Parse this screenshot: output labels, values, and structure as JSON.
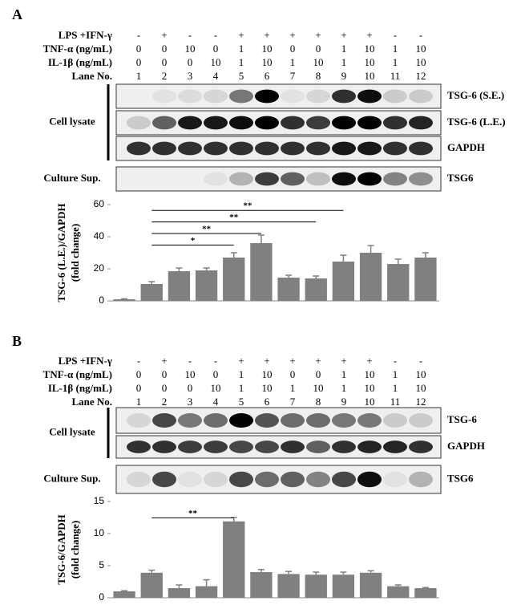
{
  "panels": [
    {
      "letter": "A",
      "rows": [
        {
          "label": "LPS +IFN-γ",
          "values": [
            "-",
            "+",
            "-",
            "-",
            "+",
            "+",
            "+",
            "+",
            "+",
            "+",
            "-",
            "-"
          ]
        },
        {
          "label": "TNF-α (ng/mL)",
          "values": [
            0,
            0,
            10,
            0,
            1,
            10,
            0,
            0,
            1,
            10,
            1,
            10
          ]
        },
        {
          "label": "IL-1β (ng/mL)",
          "values": [
            0,
            0,
            0,
            10,
            1,
            10,
            1,
            10,
            1,
            10,
            1,
            10
          ]
        },
        {
          "label": "Lane No.",
          "values": [
            1,
            2,
            3,
            4,
            5,
            6,
            7,
            8,
            9,
            10,
            11,
            12
          ]
        }
      ],
      "groups": [
        "Cell lysate",
        "Culture Sup."
      ],
      "blots": [
        "TSG-6 (S.E.)",
        "TSG-6 (L.E.)",
        "GAPDH",
        "TSG6"
      ]
    },
    {
      "letter": "B",
      "rows": [
        {
          "label": "LPS +IFN-γ",
          "values": [
            "-",
            "+",
            "-",
            "-",
            "+",
            "+",
            "+",
            "+",
            "+",
            "+",
            "-",
            "-"
          ]
        },
        {
          "label": "TNF-α (ng/mL)",
          "values": [
            0,
            0,
            10,
            0,
            1,
            10,
            0,
            0,
            1,
            10,
            1,
            10
          ]
        },
        {
          "label": "IL-1β (ng/mL)",
          "values": [
            0,
            0,
            0,
            10,
            1,
            10,
            1,
            10,
            1,
            10,
            1,
            10
          ]
        },
        {
          "label": "Lane No.",
          "values": [
            1,
            2,
            3,
            4,
            5,
            6,
            7,
            8,
            9,
            10,
            11,
            12
          ]
        }
      ],
      "groups": [
        "Cell lysate",
        "Culture Sup."
      ],
      "blots": [
        "TSG-6",
        "GAPDH",
        "TSG6"
      ]
    }
  ],
  "chart_data": [
    {
      "type": "bar",
      "ylabel": [
        "TSG-6 (L.E.)/GAPDH",
        "(fold change)"
      ],
      "color": "#808080",
      "values": [
        1,
        10.5,
        18.5,
        19,
        27,
        36,
        14.5,
        14,
        24.5,
        30,
        23,
        27
      ],
      "errors": [
        0.3,
        1.5,
        2,
        1.5,
        3,
        5,
        1.5,
        1.5,
        4,
        4.5,
        3,
        3
      ],
      "ylim": [
        0,
        60
      ],
      "yticks": [
        0,
        20,
        40,
        60
      ],
      "annotations": [
        {
          "text": "*",
          "from": 1,
          "to": 4
        },
        {
          "text": "**",
          "from": 1,
          "to": 5
        },
        {
          "text": "**",
          "from": 1,
          "to": 7
        },
        {
          "text": "**",
          "from": 1,
          "to": 8
        }
      ]
    },
    {
      "type": "bar",
      "ylabel": [
        "TSG-6/GAPDH",
        "(fold change)"
      ],
      "color": "#808080",
      "values": [
        1,
        3.9,
        1.5,
        1.8,
        11.9,
        4,
        3.7,
        3.6,
        3.6,
        3.9,
        1.8,
        1.5
      ],
      "errors": [
        0.1,
        0.4,
        0.5,
        1,
        0.6,
        0.4,
        0.4,
        0.4,
        0.4,
        0.3,
        0.2,
        0.1
      ],
      "ylim": [
        0,
        15
      ],
      "yticks": [
        0,
        5,
        10,
        15
      ],
      "annotations": [
        {
          "text": "**",
          "from": 1,
          "to": 4
        }
      ]
    }
  ]
}
